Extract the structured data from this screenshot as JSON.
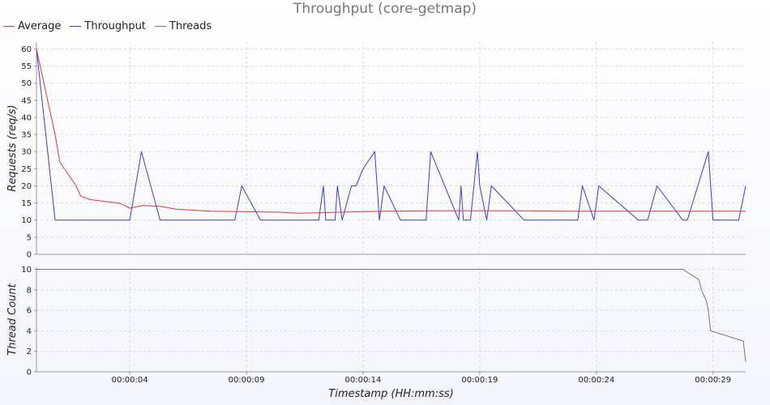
{
  "chart_data": {
    "type": "line",
    "title": "Throughput (core-getmap)",
    "xlabel": "Timestamp (HH:mm:ss)",
    "legend": {
      "placement": "top-left",
      "entries": [
        {
          "name": "Average",
          "color": "#e8343b"
        },
        {
          "name": "Throughput",
          "color": "#3c3cd8"
        },
        {
          "name": "Threads",
          "color": "#777777"
        }
      ]
    },
    "x_ticks": [
      "00:00:04",
      "00:00:09",
      "00:00:14",
      "00:00:19",
      "00:00:24",
      "00:00:29"
    ],
    "x_tick_values": [
      4,
      9,
      14,
      19,
      24,
      29
    ],
    "xlim": [
      0.0,
      30.4
    ],
    "panels": [
      {
        "ylabel": "Requests (req/s)",
        "ylim": [
          0,
          62
        ],
        "y_ticks": [
          0,
          5,
          10,
          15,
          20,
          25,
          30,
          35,
          40,
          45,
          50,
          55,
          60
        ],
        "grid": true,
        "series": [
          {
            "name": "Throughput",
            "color": "#3c3cd8",
            "x": [
              0.0,
              0.8,
              4.0,
              4.5,
              5.3,
              8.5,
              8.8,
              9.6,
              12.1,
              12.3,
              12.4,
              12.8,
              12.9,
              13.1,
              13.5,
              13.7,
              14.0,
              14.5,
              14.7,
              14.9,
              15.6,
              16.7,
              16.9,
              18.1,
              18.2,
              18.3,
              18.6,
              18.9,
              19.0,
              19.3,
              19.5,
              20.9,
              21.6,
              21.8,
              23.2,
              23.4,
              23.9,
              24.1,
              25.8,
              26.2,
              26.6,
              27.7,
              27.9,
              28.8,
              29.0,
              30.1,
              30.4
            ],
            "values": [
              60,
              10,
              10,
              30,
              10,
              10,
              20,
              10,
              10,
              20,
              10,
              10,
              20,
              10,
              20,
              20,
              25,
              30,
              10,
              20,
              10,
              10,
              30,
              10,
              20,
              10,
              10,
              30,
              20,
              10,
              20,
              10,
              10,
              10,
              10,
              20,
              10,
              20,
              10,
              10,
              20,
              10,
              10,
              30,
              10,
              10,
              20
            ]
          },
          {
            "name": "Average",
            "color": "#e8343b",
            "x": [
              0.0,
              0.8,
              1.0,
              1.7,
              1.9,
              2.3,
              3.5,
              3.7,
              4.0,
              4.6,
              5.3,
              6.0,
              7.5,
              10.4,
              11.2,
              13.5,
              15.0,
              17.0,
              21.0,
              22.6,
              23.2,
              30.4
            ],
            "values": [
              60,
              35,
              27,
              20,
              17,
              16,
              15,
              14.5,
              13.5,
              14.3,
              14,
              13.2,
              12.6,
              12.3,
              12,
              12.4,
              12.6,
              12.7,
              12.7,
              12.6,
              12.6,
              12.6
            ]
          }
        ]
      },
      {
        "ylabel": "Thread Count",
        "ylim": [
          0,
          10.2
        ],
        "y_ticks": [
          0,
          2,
          4,
          6,
          8,
          10
        ],
        "grid": true,
        "series": [
          {
            "name": "Threads",
            "color": "#777777",
            "x": [
              0.0,
              27.7,
              28.4,
              28.5,
              28.7,
              28.8,
              28.9,
              30.3,
              30.4
            ],
            "values": [
              10,
              10,
              9,
              8,
              7,
              6,
              4,
              3,
              1
            ]
          }
        ]
      }
    ]
  }
}
